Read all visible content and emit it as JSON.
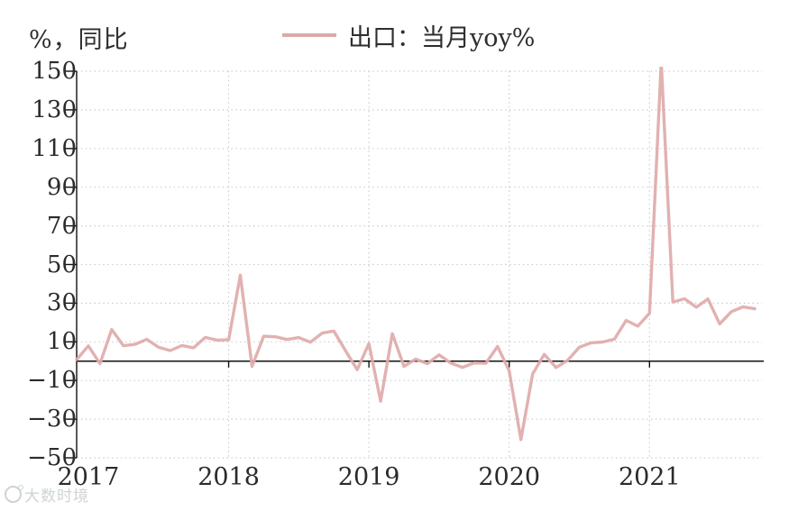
{
  "page": {
    "title": "%，同比",
    "watermark": "大数时境"
  },
  "legend": {
    "label": "出口：当月yoy%"
  },
  "colors": {
    "line": "#e0aaaa",
    "legend_swatch": "#d9aba7",
    "grid": "#c6c6c6",
    "axis": "#111111",
    "text": "#2b2b2b"
  },
  "chart_data": {
    "type": "line",
    "title": "%，同比",
    "ylabel": "%，同比",
    "xlabel": "",
    "legend_position": "top",
    "grid": "dotted horizontal at every y tick; dotted vertical at each January",
    "series_name": "出口：当月yoy%",
    "y_ticks": [
      150,
      130,
      110,
      90,
      70,
      50,
      30,
      10,
      -10,
      -30,
      -50
    ],
    "ylim": [
      -50,
      150
    ],
    "x_year_labels": [
      "2017",
      "2018",
      "2019",
      "2020",
      "2021"
    ],
    "x": [
      "2016-12",
      "2017-01",
      "2017-02",
      "2017-03",
      "2017-04",
      "2017-05",
      "2017-06",
      "2017-07",
      "2017-08",
      "2017-09",
      "2017-10",
      "2017-11",
      "2017-12",
      "2018-01",
      "2018-02",
      "2018-03",
      "2018-04",
      "2018-05",
      "2018-06",
      "2018-07",
      "2018-08",
      "2018-09",
      "2018-10",
      "2018-11",
      "2018-12",
      "2019-01",
      "2019-02",
      "2019-03",
      "2019-04",
      "2019-05",
      "2019-06",
      "2019-07",
      "2019-08",
      "2019-09",
      "2019-10",
      "2019-11",
      "2019-12",
      "2020-01",
      "2020-02",
      "2020-03",
      "2020-04",
      "2020-05",
      "2020-06",
      "2020-07",
      "2020-08",
      "2020-09",
      "2020-10",
      "2020-11",
      "2020-12",
      "2021-01",
      "2021-02",
      "2021-03",
      "2021-04",
      "2021-05",
      "2021-06",
      "2021-07",
      "2021-08",
      "2021-09",
      "2021-10"
    ],
    "values": [
      0.8,
      7.9,
      -1.3,
      16.4,
      8.0,
      8.7,
      11.3,
      7.2,
      5.5,
      8.1,
      6.9,
      12.3,
      10.9,
      11.1,
      44.5,
      -2.7,
      12.9,
      12.6,
      11.2,
      12.2,
      9.8,
      14.5,
      15.6,
      5.4,
      -4.4,
      9.1,
      -20.7,
      14.2,
      -2.7,
      1.1,
      -1.3,
      3.3,
      -1.0,
      -3.2,
      -0.9,
      -1.1,
      7.6,
      -5.0,
      -40.6,
      -6.6,
      3.5,
      -3.3,
      0.5,
      7.2,
      9.5,
      9.9,
      11.4,
      21.1,
      18.1,
      24.8,
      154.9,
      30.6,
      32.3,
      27.9,
      32.2,
      19.3,
      25.6,
      28.1,
      27.1
    ]
  }
}
